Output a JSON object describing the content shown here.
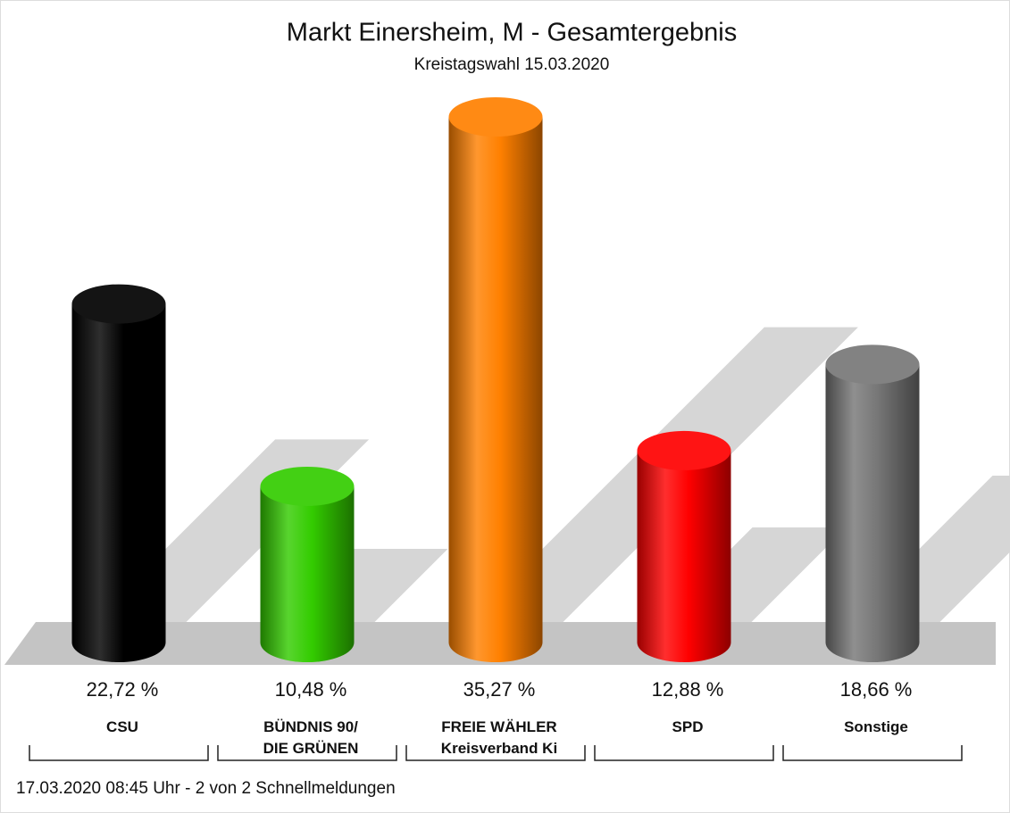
{
  "chart_data": {
    "type": "bar",
    "title": "Markt Einersheim, M - Gesamtergebnis",
    "subtitle": "Kreistagswahl 15.03.2020",
    "categories": [
      "CSU",
      "BÜNDNIS 90/\nDIE GRÜNEN",
      "FREIE WÄHLER\nKreisverband Ki",
      "SPD",
      "Sonstige"
    ],
    "values": [
      22.72,
      10.48,
      35.27,
      12.88,
      18.66
    ],
    "value_labels": [
      "22,72 %",
      "10,48 %",
      "35,27 %",
      "12,88 %",
      "18,66 %"
    ],
    "colors": [
      "#000000",
      "#33cc00",
      "#ff8000",
      "#ff0000",
      "#777777"
    ],
    "footer": "17.03.2020 08:45 Uhr - 2 von 2 Schnellmeldungen"
  }
}
